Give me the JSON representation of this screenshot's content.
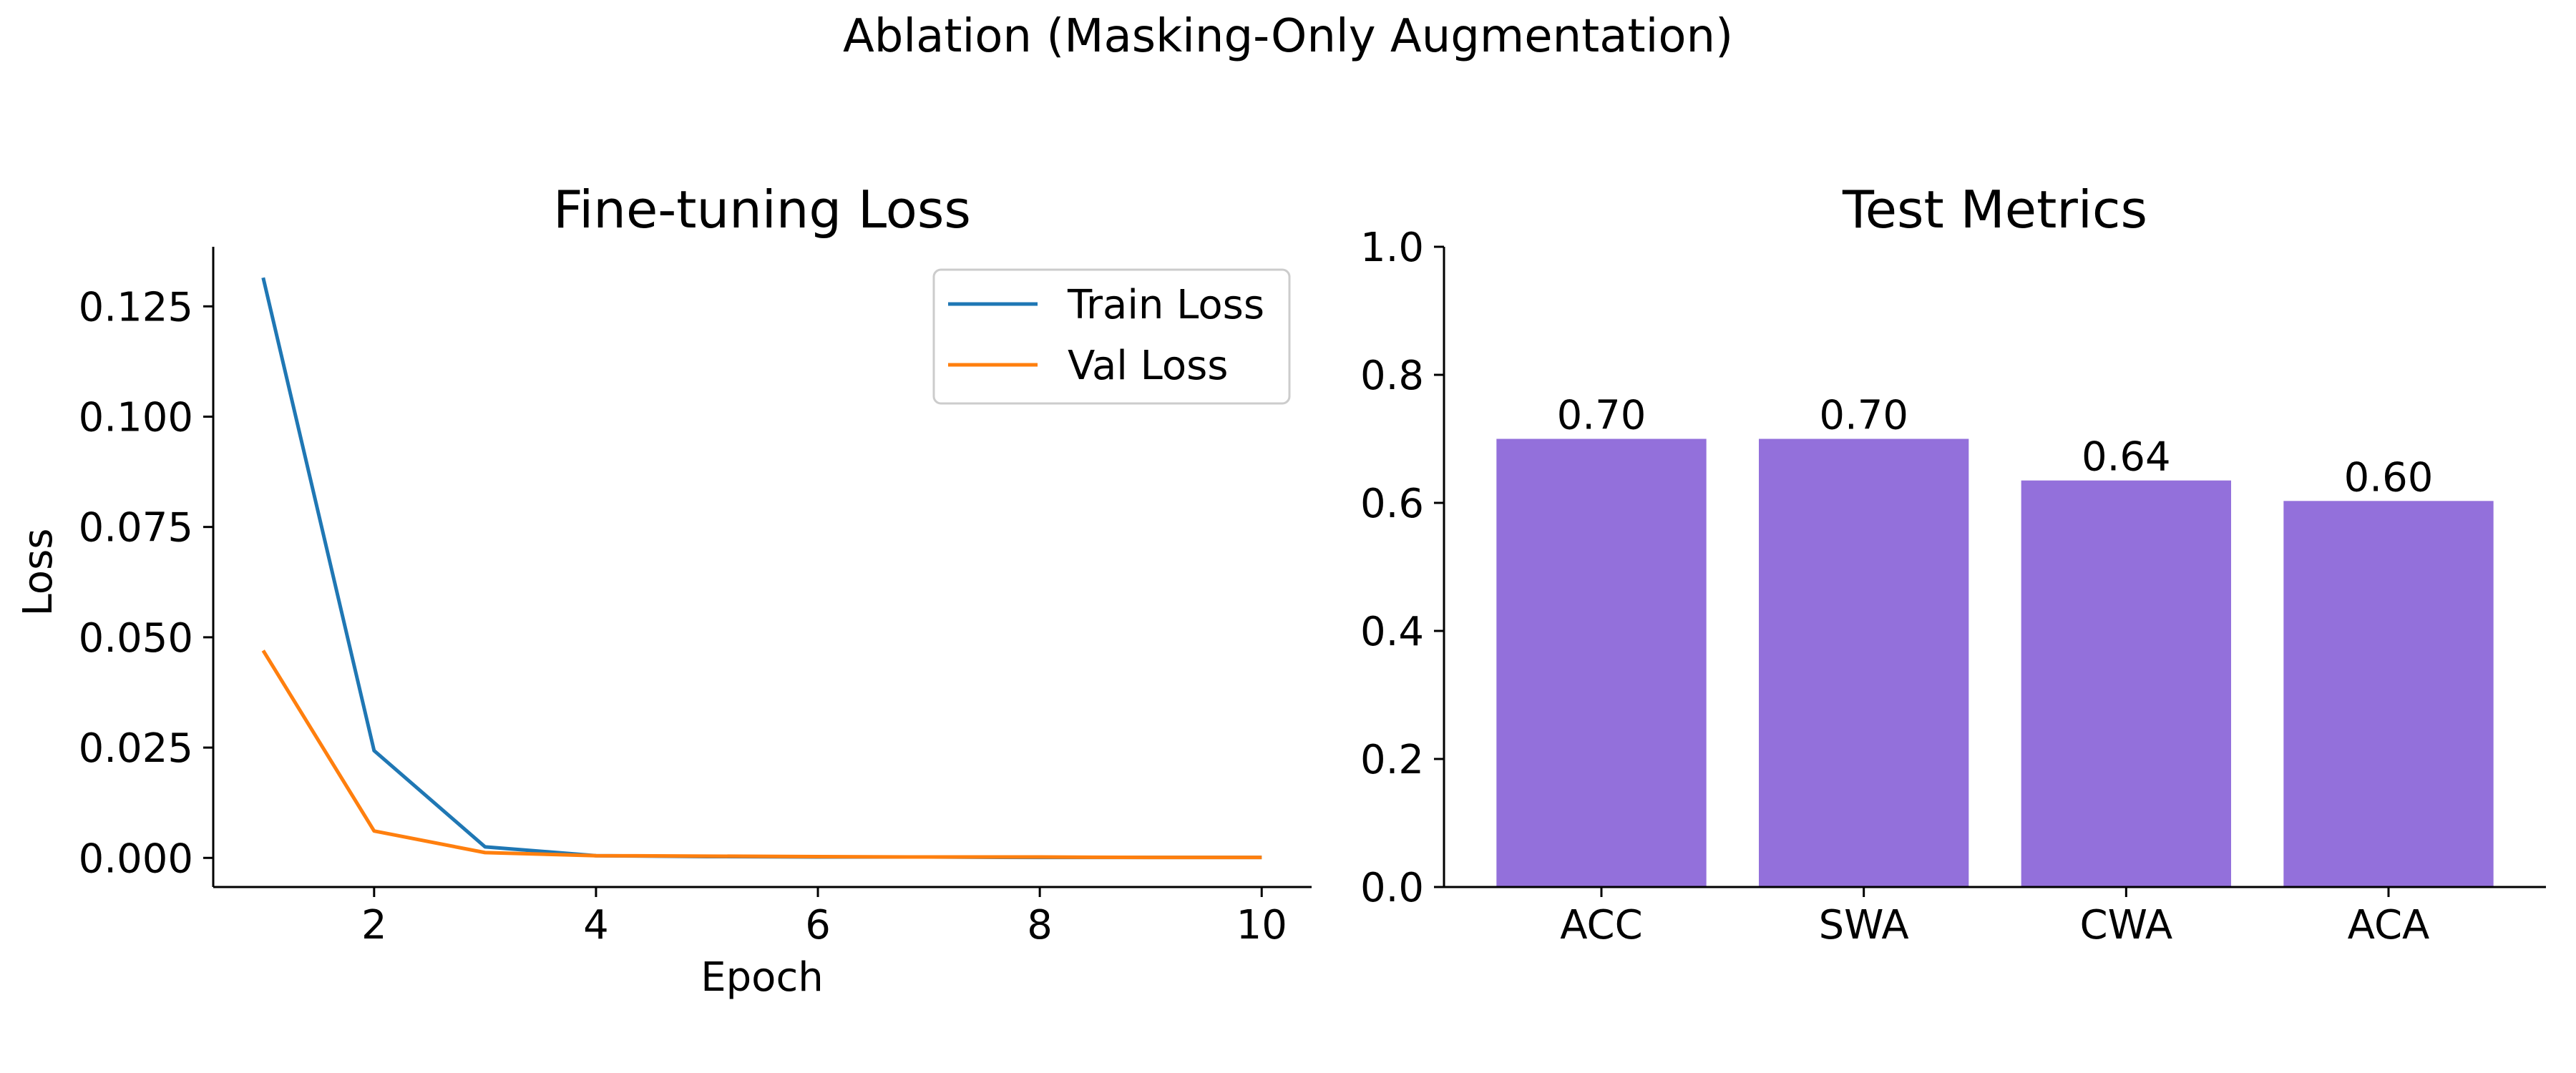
{
  "figure_title": "Ablation (Masking-Only Augmentation)",
  "chart_data": [
    {
      "type": "line",
      "title": "Fine-tuning Loss",
      "xlabel": "Epoch",
      "ylabel": "Loss",
      "xlim": [
        0.55,
        10.45
      ],
      "ylim": [
        -0.0066,
        0.1385
      ],
      "xticks": [
        2,
        4,
        6,
        8,
        10
      ],
      "xtick_labels": [
        "2",
        "4",
        "6",
        "8",
        "10"
      ],
      "yticks": [
        0,
        0.025,
        0.05,
        0.075,
        0.1,
        0.125
      ],
      "ytick_labels": [
        "0.000",
        "0.025",
        "0.050",
        "0.075",
        "0.100",
        "0.125"
      ],
      "x": [
        1,
        2,
        3,
        4,
        5,
        6,
        7,
        8,
        9,
        10
      ],
      "series": [
        {
          "name": "Train Loss",
          "color": "#1f77b4",
          "values": [
            0.1315,
            0.0243,
            0.0025,
            0.0005,
            0.0003,
            0.0002,
            0.0002,
            0.0001,
            0.0001,
            0.0001
          ]
        },
        {
          "name": "Val Loss",
          "color": "#ff7f0e",
          "values": [
            0.047,
            0.0061,
            0.0012,
            0.0005,
            0.0004,
            0.0003,
            0.0002,
            0.0002,
            0.0001,
            0.0001
          ]
        }
      ],
      "legend": "top-right",
      "grid": false
    },
    {
      "type": "bar",
      "title": "Test Metrics",
      "categories": [
        "ACC",
        "SWA",
        "CWA",
        "ACA"
      ],
      "values": [
        0.7,
        0.7,
        0.635,
        0.603
      ],
      "data_labels": [
        "0.70",
        "0.70",
        "0.64",
        "0.60"
      ],
      "color": "#9370db",
      "ylim": [
        0,
        1.0
      ],
      "yticks": [
        0,
        0.2,
        0.4,
        0.6,
        0.8,
        1.0
      ],
      "ytick_labels": [
        "0.0",
        "0.2",
        "0.4",
        "0.6",
        "0.8",
        "1.0"
      ],
      "xlabel": "",
      "ylabel": "",
      "grid": false
    }
  ]
}
